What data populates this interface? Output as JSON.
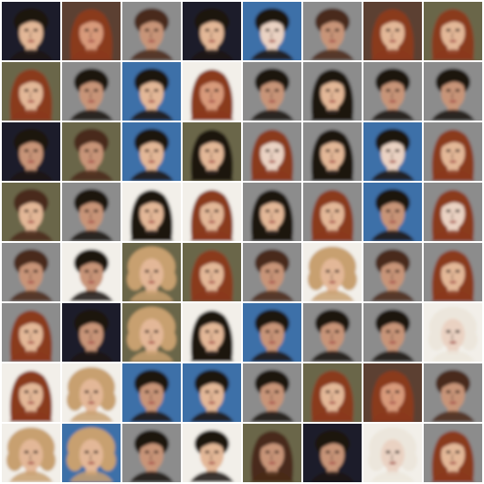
{
  "grid": {
    "rows": 8,
    "cols": 8
  },
  "palette": {
    "bg_dark": "#1a1f2a",
    "bg_gray": "#8c8c8c",
    "bg_blue": "#3e6fa8",
    "bg_white": "#f2efe9",
    "bg_brown": "#5c4030",
    "bg_olive": "#6b6648",
    "hair_black": "#1b1410",
    "hair_brown": "#4a2a1a",
    "hair_red": "#8a3a1e",
    "hair_blonde": "#c8a070",
    "hair_white": "#ece6dc",
    "skin_light": "#e3b797",
    "skin_mid": "#c89478",
    "skin_warm": "#d89a7a",
    "skin_pale": "#ead2c2",
    "eye_dark": "#2a1a14",
    "lip": "#a8504a"
  },
  "tiles": [
    {
      "bg": "bg_dark",
      "hair": "hair_black",
      "skin": "skin_light",
      "style": "short"
    },
    {
      "bg": "bg_brown",
      "hair": "hair_red",
      "skin": "skin_warm",
      "style": "long"
    },
    {
      "bg": "bg_gray",
      "hair": "hair_brown",
      "skin": "skin_mid",
      "style": "short"
    },
    {
      "bg": "bg_dark",
      "hair": "hair_black",
      "skin": "skin_light",
      "style": "short"
    },
    {
      "bg": "bg_blue",
      "hair": "hair_black",
      "skin": "skin_pale",
      "style": "short"
    },
    {
      "bg": "bg_gray",
      "hair": "hair_brown",
      "skin": "skin_mid",
      "style": "short"
    },
    {
      "bg": "bg_brown",
      "hair": "hair_red",
      "skin": "skin_light",
      "style": "long"
    },
    {
      "bg": "bg_olive",
      "hair": "hair_red",
      "skin": "skin_light",
      "style": "long"
    },
    {
      "bg": "bg_olive",
      "hair": "hair_red",
      "skin": "skin_light",
      "style": "long"
    },
    {
      "bg": "bg_gray",
      "hair": "hair_black",
      "skin": "skin_mid",
      "style": "short"
    },
    {
      "bg": "bg_blue",
      "hair": "hair_black",
      "skin": "skin_light",
      "style": "short"
    },
    {
      "bg": "bg_white",
      "hair": "hair_red",
      "skin": "skin_warm",
      "style": "long"
    },
    {
      "bg": "bg_gray",
      "hair": "hair_black",
      "skin": "skin_mid",
      "style": "short"
    },
    {
      "bg": "bg_gray",
      "hair": "hair_black",
      "skin": "skin_light",
      "style": "long"
    },
    {
      "bg": "bg_gray",
      "hair": "hair_black",
      "skin": "skin_mid",
      "style": "short"
    },
    {
      "bg": "bg_gray",
      "hair": "hair_black",
      "skin": "skin_mid",
      "style": "short"
    },
    {
      "bg": "bg_dark",
      "hair": "hair_black",
      "skin": "skin_mid",
      "style": "short"
    },
    {
      "bg": "bg_olive",
      "hair": "hair_brown",
      "skin": "skin_mid",
      "style": "short"
    },
    {
      "bg": "bg_blue",
      "hair": "hair_black",
      "skin": "skin_light",
      "style": "short"
    },
    {
      "bg": "bg_olive",
      "hair": "hair_black",
      "skin": "skin_light",
      "style": "long"
    },
    {
      "bg": "bg_gray",
      "hair": "hair_red",
      "skin": "skin_pale",
      "style": "long"
    },
    {
      "bg": "bg_gray",
      "hair": "hair_black",
      "skin": "skin_light",
      "style": "long"
    },
    {
      "bg": "bg_blue",
      "hair": "hair_black",
      "skin": "skin_pale",
      "style": "short"
    },
    {
      "bg": "bg_gray",
      "hair": "hair_red",
      "skin": "skin_light",
      "style": "long"
    },
    {
      "bg": "bg_olive",
      "hair": "hair_brown",
      "skin": "skin_light",
      "style": "short"
    },
    {
      "bg": "bg_gray",
      "hair": "hair_black",
      "skin": "skin_mid",
      "style": "short"
    },
    {
      "bg": "bg_white",
      "hair": "hair_black",
      "skin": "skin_light",
      "style": "long"
    },
    {
      "bg": "bg_white",
      "hair": "hair_red",
      "skin": "skin_light",
      "style": "long"
    },
    {
      "bg": "bg_gray",
      "hair": "hair_black",
      "skin": "skin_light",
      "style": "long"
    },
    {
      "bg": "bg_gray",
      "hair": "hair_red",
      "skin": "skin_light",
      "style": "long"
    },
    {
      "bg": "bg_blue",
      "hair": "hair_black",
      "skin": "skin_mid",
      "style": "short"
    },
    {
      "bg": "bg_gray",
      "hair": "hair_red",
      "skin": "skin_pale",
      "style": "long"
    },
    {
      "bg": "bg_gray",
      "hair": "hair_brown",
      "skin": "skin_mid",
      "style": "short"
    },
    {
      "bg": "bg_white",
      "hair": "hair_black",
      "skin": "skin_mid",
      "style": "short"
    },
    {
      "bg": "bg_olive",
      "hair": "hair_blonde",
      "skin": "skin_light",
      "style": "curly"
    },
    {
      "bg": "bg_olive",
      "hair": "hair_red",
      "skin": "skin_light",
      "style": "long"
    },
    {
      "bg": "bg_gray",
      "hair": "hair_brown",
      "skin": "skin_mid",
      "style": "short"
    },
    {
      "bg": "bg_white",
      "hair": "hair_blonde",
      "skin": "skin_light",
      "style": "curly"
    },
    {
      "bg": "bg_gray",
      "hair": "hair_brown",
      "skin": "skin_mid",
      "style": "short"
    },
    {
      "bg": "bg_gray",
      "hair": "hair_red",
      "skin": "skin_light",
      "style": "long"
    },
    {
      "bg": "bg_gray",
      "hair": "hair_red",
      "skin": "skin_light",
      "style": "long"
    },
    {
      "bg": "bg_dark",
      "hair": "hair_black",
      "skin": "skin_mid",
      "style": "short"
    },
    {
      "bg": "bg_olive",
      "hair": "hair_blonde",
      "skin": "skin_light",
      "style": "curly"
    },
    {
      "bg": "bg_white",
      "hair": "hair_black",
      "skin": "skin_light",
      "style": "long"
    },
    {
      "bg": "bg_blue",
      "hair": "hair_black",
      "skin": "skin_mid",
      "style": "short"
    },
    {
      "bg": "bg_gray",
      "hair": "hair_black",
      "skin": "skin_mid",
      "style": "short"
    },
    {
      "bg": "bg_gray",
      "hair": "hair_black",
      "skin": "skin_mid",
      "style": "short"
    },
    {
      "bg": "bg_white",
      "hair": "hair_white",
      "skin": "skin_pale",
      "style": "curly"
    },
    {
      "bg": "bg_white",
      "hair": "hair_red",
      "skin": "skin_light",
      "style": "long"
    },
    {
      "bg": "bg_white",
      "hair": "hair_blonde",
      "skin": "skin_light",
      "style": "curly"
    },
    {
      "bg": "bg_blue",
      "hair": "hair_black",
      "skin": "skin_mid",
      "style": "short"
    },
    {
      "bg": "bg_blue",
      "hair": "hair_black",
      "skin": "skin_light",
      "style": "short"
    },
    {
      "bg": "bg_gray",
      "hair": "hair_black",
      "skin": "skin_mid",
      "style": "short"
    },
    {
      "bg": "bg_olive",
      "hair": "hair_red",
      "skin": "skin_light",
      "style": "long"
    },
    {
      "bg": "bg_brown",
      "hair": "hair_red",
      "skin": "skin_warm",
      "style": "long"
    },
    {
      "bg": "bg_gray",
      "hair": "hair_brown",
      "skin": "skin_mid",
      "style": "short"
    },
    {
      "bg": "bg_white",
      "hair": "hair_blonde",
      "skin": "skin_light",
      "style": "curly"
    },
    {
      "bg": "bg_blue",
      "hair": "hair_blonde",
      "skin": "skin_light",
      "style": "curly"
    },
    {
      "bg": "bg_gray",
      "hair": "hair_black",
      "skin": "skin_mid",
      "style": "short"
    },
    {
      "bg": "bg_white",
      "hair": "hair_black",
      "skin": "skin_light",
      "style": "short"
    },
    {
      "bg": "bg_olive",
      "hair": "hair_brown",
      "skin": "skin_mid",
      "style": "long"
    },
    {
      "bg": "bg_dark",
      "hair": "hair_black",
      "skin": "skin_mid",
      "style": "short"
    },
    {
      "bg": "bg_white",
      "hair": "hair_white",
      "skin": "skin_pale",
      "style": "curly"
    },
    {
      "bg": "bg_gray",
      "hair": "hair_red",
      "skin": "skin_light",
      "style": "long"
    }
  ]
}
